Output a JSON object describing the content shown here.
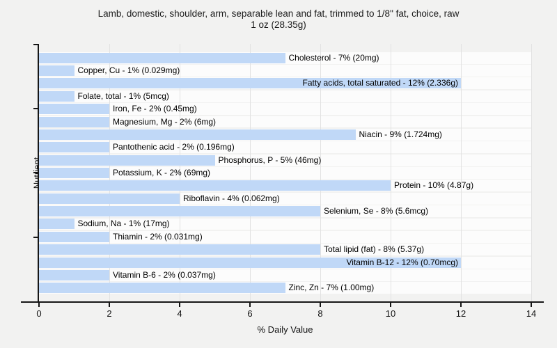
{
  "title": {
    "line1": "Lamb, domestic, shoulder, arm, separable lean and fat, trimmed to 1/8\" fat, choice, raw",
    "line2": "1 oz (28.35g)"
  },
  "chart_data": {
    "type": "bar",
    "orientation": "horizontal",
    "title": "Lamb, domestic, shoulder, arm, separable lean and fat, trimmed to 1/8\" fat, choice, raw — 1 oz (28.35g)",
    "xlabel": "% Daily Value",
    "ylabel": "Nutrient",
    "xlim": [
      0,
      14
    ],
    "x_ticks": [
      0,
      2,
      4,
      6,
      8,
      10,
      12,
      14
    ],
    "grid": "vertical",
    "legend": "none",
    "bars": [
      {
        "nutrient": "Cholesterol",
        "percent": 7,
        "amount": "20mg",
        "label": "Cholesterol - 7% (20mg)"
      },
      {
        "nutrient": "Copper, Cu",
        "percent": 1,
        "amount": "0.029mg",
        "label": "Copper, Cu - 1% (0.029mg)"
      },
      {
        "nutrient": "Fatty acids, total saturated",
        "percent": 12,
        "amount": "2.336g",
        "label": "Fatty acids, total saturated - 12% (2.336g)"
      },
      {
        "nutrient": "Folate, total",
        "percent": 1,
        "amount": "5mcg",
        "label": "Folate, total - 1% (5mcg)"
      },
      {
        "nutrient": "Iron, Fe",
        "percent": 2,
        "amount": "0.45mg",
        "label": "Iron, Fe - 2% (0.45mg)"
      },
      {
        "nutrient": "Magnesium, Mg",
        "percent": 2,
        "amount": "6mg",
        "label": "Magnesium, Mg - 2% (6mg)"
      },
      {
        "nutrient": "Niacin",
        "percent": 9,
        "amount": "1.724mg",
        "label": "Niacin - 9% (1.724mg)"
      },
      {
        "nutrient": "Pantothenic acid",
        "percent": 2,
        "amount": "0.196mg",
        "label": "Pantothenic acid - 2% (0.196mg)"
      },
      {
        "nutrient": "Phosphorus, P",
        "percent": 5,
        "amount": "46mg",
        "label": "Phosphorus, P - 5% (46mg)"
      },
      {
        "nutrient": "Potassium, K",
        "percent": 2,
        "amount": "69mg",
        "label": "Potassium, K - 2% (69mg)"
      },
      {
        "nutrient": "Protein",
        "percent": 10,
        "amount": "4.87g",
        "label": "Protein - 10% (4.87g)"
      },
      {
        "nutrient": "Riboflavin",
        "percent": 4,
        "amount": "0.062mg",
        "label": "Riboflavin - 4% (0.062mg)"
      },
      {
        "nutrient": "Selenium, Se",
        "percent": 8,
        "amount": "5.6mcg",
        "label": "Selenium, Se - 8% (5.6mcg)"
      },
      {
        "nutrient": "Sodium, Na",
        "percent": 1,
        "amount": "17mg",
        "label": "Sodium, Na - 1% (17mg)"
      },
      {
        "nutrient": "Thiamin",
        "percent": 2,
        "amount": "0.031mg",
        "label": "Thiamin - 2% (0.031mg)"
      },
      {
        "nutrient": "Total lipid (fat)",
        "percent": 8,
        "amount": "5.37g",
        "label": "Total lipid (fat) - 8% (5.37g)"
      },
      {
        "nutrient": "Vitamin B-12",
        "percent": 12,
        "amount": "0.70mcg",
        "label": "Vitamin B-12 - 12% (0.70mcg)"
      },
      {
        "nutrient": "Vitamin B-6",
        "percent": 2,
        "amount": "0.037mg",
        "label": "Vitamin B-6 - 2% (0.037mg)"
      },
      {
        "nutrient": "Zinc, Zn",
        "percent": 7,
        "amount": "1.00mg",
        "label": "Zinc, Zn - 7% (1.00mg)"
      }
    ]
  },
  "colors": {
    "background": "#f2f2f1",
    "row_band": "#fcfcfc",
    "bar_fill": "#c0d8f7",
    "gridline": "#e2e2e2",
    "axis": "#161616",
    "text": "#000000"
  }
}
